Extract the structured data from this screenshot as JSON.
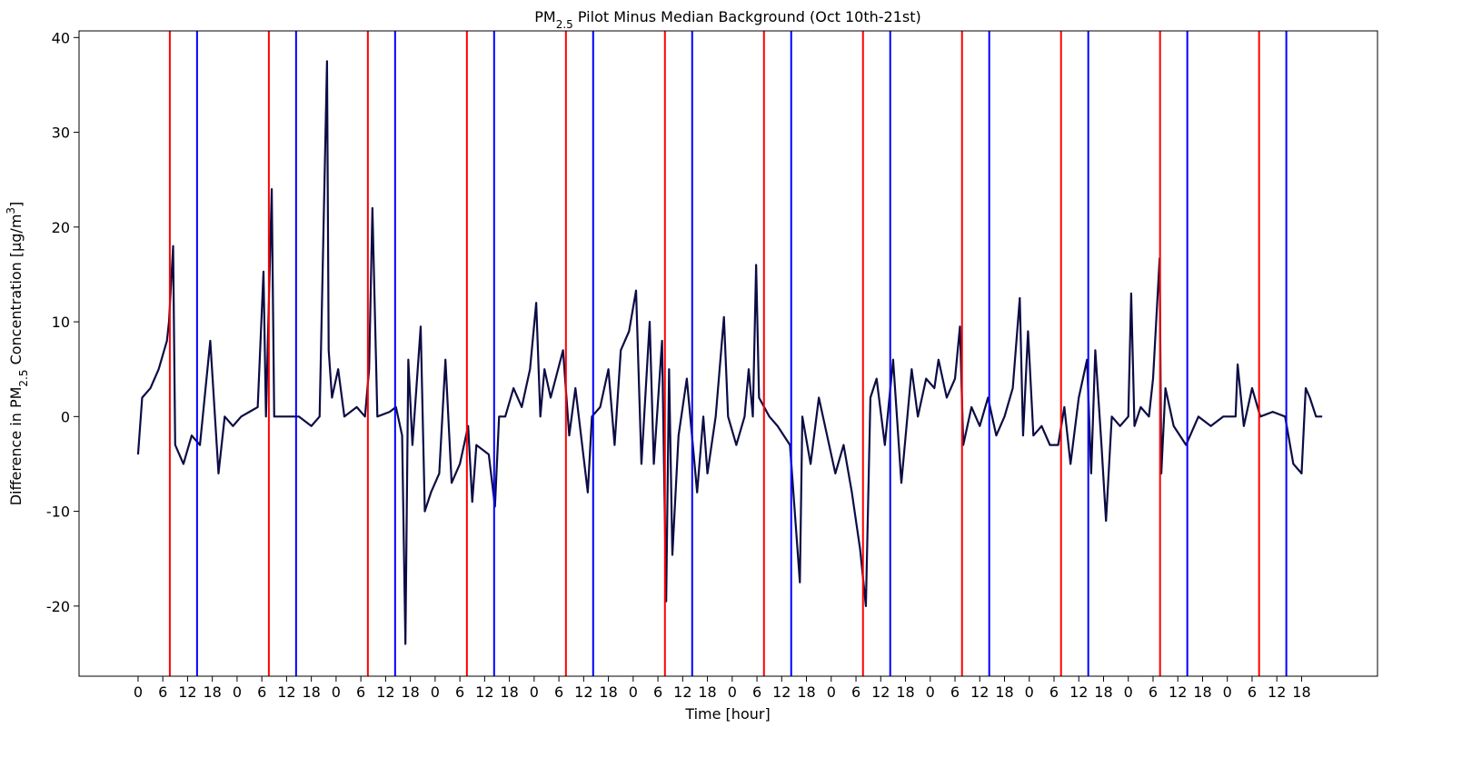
{
  "chart_data": {
    "type": "line",
    "title_parts": [
      "PM",
      "2.5",
      " Pilot Minus Median Background (Oct 10th-21st)"
    ],
    "x_label": "Time [hour]",
    "y_label_parts": [
      "Difference in PM",
      "2.5",
      " Concentration [μg/m",
      "3",
      "]"
    ],
    "grid": false,
    "xlim": [
      -14.3,
      300.4
    ],
    "ylim": [
      -27.4,
      40.7
    ],
    "yticks": [
      -20,
      -10,
      0,
      10,
      20,
      30,
      40
    ],
    "xticks": [
      0,
      6,
      12,
      18,
      {
        "value": 24,
        "label": "0"
      },
      {
        "value": 30,
        "label": "6"
      },
      {
        "value": 36,
        "label": "12"
      },
      {
        "value": 42,
        "label": "18"
      },
      {
        "value": 48,
        "label": "0"
      },
      {
        "value": 54,
        "label": "6"
      },
      {
        "value": 60,
        "label": "12"
      },
      {
        "value": 66,
        "label": "18"
      },
      {
        "value": 72,
        "label": "0"
      },
      {
        "value": 78,
        "label": "6"
      },
      {
        "value": 84,
        "label": "12"
      },
      {
        "value": 90,
        "label": "18"
      },
      {
        "value": 96,
        "label": "0"
      },
      {
        "value": 102,
        "label": "6"
      },
      {
        "value": 108,
        "label": "12"
      },
      {
        "value": 114,
        "label": "18"
      },
      {
        "value": 120,
        "label": "0"
      },
      {
        "value": 126,
        "label": "6"
      },
      {
        "value": 132,
        "label": "12"
      },
      {
        "value": 138,
        "label": "18"
      },
      {
        "value": 144,
        "label": "0"
      },
      {
        "value": 150,
        "label": "6"
      },
      {
        "value": 156,
        "label": "12"
      },
      {
        "value": 162,
        "label": "18"
      },
      {
        "value": 168,
        "label": "0"
      },
      {
        "value": 174,
        "label": "6"
      },
      {
        "value": 180,
        "label": "12"
      },
      {
        "value": 186,
        "label": "18"
      },
      {
        "value": 192,
        "label": "0"
      },
      {
        "value": 198,
        "label": "6"
      },
      {
        "value": 204,
        "label": "12"
      },
      {
        "value": 210,
        "label": "18"
      },
      {
        "value": 216,
        "label": "0"
      },
      {
        "value": 222,
        "label": "6"
      },
      {
        "value": 228,
        "label": "12"
      },
      {
        "value": 234,
        "label": "18"
      },
      {
        "value": 240,
        "label": "0"
      },
      {
        "value": 246,
        "label": "6"
      },
      {
        "value": 252,
        "label": "12"
      },
      {
        "value": 258,
        "label": "18"
      },
      {
        "value": 264,
        "label": "0"
      },
      {
        "value": 270,
        "label": "6"
      },
      {
        "value": 276,
        "label": "12"
      },
      {
        "value": 282,
        "label": "18"
      }
    ],
    "vertical_lines": [
      {
        "color": "#ff0000",
        "x": [
          7.7,
          31.7,
          55.7,
          79.7,
          103.7,
          127.7,
          151.7,
          175.7,
          199.7,
          223.7,
          247.7,
          271.7
        ]
      },
      {
        "color": "#0000ff",
        "x": [
          14.3,
          38.3,
          62.3,
          86.3,
          110.3,
          134.3,
          158.3,
          182.3,
          206.3,
          230.3,
          254.3,
          278.3
        ]
      }
    ],
    "x": [
      0,
      1,
      3,
      5,
      7,
      7.5,
      8.5,
      9,
      11,
      13,
      15,
      17.5,
      19.5,
      21,
      23,
      25,
      27,
      29,
      30.4,
      31,
      32.4,
      33,
      36,
      39,
      42,
      44,
      45.8,
      46.2,
      47,
      48.5,
      50,
      53,
      55,
      56,
      56.8,
      58,
      61,
      62.5,
      64,
      64.8,
      65.5,
      66.5,
      68.5,
      69.5,
      71,
      73,
      74.5,
      76,
      78,
      80,
      81,
      82,
      85,
      86.5,
      87.5,
      89,
      91,
      93,
      95,
      96.5,
      97.5,
      98.5,
      100,
      103,
      104.5,
      106,
      109,
      110,
      112,
      114,
      115.5,
      117,
      119,
      120.7,
      122,
      124,
      125,
      127,
      128,
      128.7,
      129.5,
      131,
      133,
      135.5,
      137,
      138,
      140,
      142,
      143,
      145,
      147,
      148,
      149,
      149.8,
      150.5,
      153,
      155,
      158,
      160.4,
      161,
      163,
      165,
      167,
      169,
      171,
      173,
      175,
      176.4,
      177.5,
      179,
      181,
      183,
      185,
      187.5,
      189,
      191,
      193,
      194,
      196,
      198,
      199.2,
      200,
      202,
      204,
      206,
      208,
      210,
      212,
      213.7,
      214.5,
      215.7,
      217,
      219,
      221,
      223,
      224.5,
      226,
      228,
      230,
      231,
      232,
      233.5,
      234.6,
      236,
      238,
      240,
      240.7,
      241.5,
      243,
      245,
      246,
      247.6,
      248,
      249,
      251,
      254,
      257,
      260,
      263,
      266,
      266.5,
      268,
      270,
      272,
      275,
      278,
      280,
      282,
      283,
      284,
      285.5,
      287
    ],
    "series": [
      {
        "color": "#0c0c45",
        "values": [
          -4,
          2,
          3,
          5,
          8,
          10,
          18,
          -3,
          -5,
          -2,
          -3,
          8,
          -6,
          0,
          -1,
          0,
          0.5,
          1,
          15.3,
          0,
          24,
          0,
          0,
          0,
          -1,
          0,
          37.5,
          7,
          2,
          5,
          0,
          1,
          0,
          5,
          22,
          0,
          0.5,
          1,
          -2,
          -24,
          6,
          -3,
          9.5,
          -10,
          -8,
          -6,
          6,
          -7,
          -5,
          -1,
          -9,
          -3,
          -4,
          -9.5,
          0,
          0,
          3,
          1,
          5,
          12,
          0,
          5,
          2,
          7,
          -2,
          3,
          -8,
          0,
          1,
          5,
          -3,
          7,
          9,
          13.3,
          -5,
          10,
          -5,
          8,
          -19.5,
          5,
          -14.6,
          -2,
          4,
          -8,
          0,
          -6,
          0,
          10.5,
          0,
          -3,
          0,
          5,
          0,
          16,
          2,
          0,
          -1,
          -3,
          -17.5,
          0,
          -5,
          2,
          -2,
          -6,
          -3,
          -8,
          -14,
          -20,
          2,
          4,
          -3,
          6,
          -7,
          5,
          0,
          4,
          3,
          6,
          2,
          4,
          9.5,
          -3,
          1,
          -1,
          2,
          -2,
          0,
          3,
          12.5,
          -2,
          9,
          -2,
          -1,
          -3,
          -3,
          1,
          -5,
          2,
          6,
          -6,
          7,
          -3,
          -11,
          0,
          -1,
          0,
          13,
          -1,
          1,
          0,
          4,
          16.7,
          -6,
          3,
          -1,
          -3,
          0,
          -1,
          0,
          0,
          5.5,
          -1,
          3,
          0,
          0.5,
          0,
          -5,
          -6,
          3,
          2,
          0,
          0
        ]
      }
    ]
  }
}
